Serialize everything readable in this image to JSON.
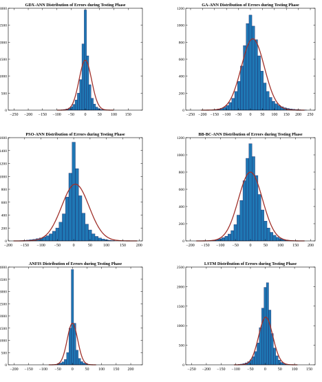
{
  "figure": {
    "colors": {
      "bar_fill": "#1f77b4",
      "bar_stroke": "#1a1a5a",
      "fit_curve": "#a0302a",
      "axis": "#000000",
      "background": "#ffffff"
    }
  },
  "chart_data": [
    {
      "type": "bar",
      "title": "GDX-ANN Distribution of Errors during Testing Phase",
      "xlim": [
        -270,
        200
      ],
      "ylim": [
        0,
        3000
      ],
      "xticks": [
        -250,
        -200,
        -150,
        -100,
        -50,
        0,
        50,
        100,
        150
      ],
      "yticks": [
        0,
        500,
        1000,
        1500,
        2000,
        2500,
        3000
      ],
      "bin_width": 8,
      "bars": [
        {
          "x": -88,
          "y": 5
        },
        {
          "x": -80,
          "y": 10
        },
        {
          "x": -72,
          "y": 20
        },
        {
          "x": -64,
          "y": 35
        },
        {
          "x": -56,
          "y": 60
        },
        {
          "x": -48,
          "y": 100
        },
        {
          "x": -40,
          "y": 170
        },
        {
          "x": -32,
          "y": 300
        },
        {
          "x": -24,
          "y": 500
        },
        {
          "x": -16,
          "y": 900
        },
        {
          "x": -8,
          "y": 1950
        },
        {
          "x": 0,
          "y": 2950
        },
        {
          "x": 8,
          "y": 1600
        },
        {
          "x": 16,
          "y": 750
        },
        {
          "x": 24,
          "y": 350
        },
        {
          "x": 32,
          "y": 180
        },
        {
          "x": 40,
          "y": 90
        },
        {
          "x": 48,
          "y": 45
        },
        {
          "x": 56,
          "y": 20
        },
        {
          "x": 64,
          "y": 10
        }
      ],
      "fit": {
        "mu": 0,
        "sigma": 22,
        "peak": 1470
      }
    },
    {
      "type": "bar",
      "title": "GA-ANN Distribution of Errors during Testing Phase",
      "xlim": [
        -270,
        270
      ],
      "ylim": [
        0,
        1200
      ],
      "xticks": [
        -250,
        -200,
        -150,
        -100,
        -50,
        0,
        50,
        100,
        150,
        200,
        250
      ],
      "yticks": [
        0,
        200,
        400,
        600,
        800,
        1000,
        1200
      ],
      "bin_width": 12,
      "bars": [
        {
          "x": -144,
          "y": 8
        },
        {
          "x": -132,
          "y": 14
        },
        {
          "x": -120,
          "y": 22
        },
        {
          "x": -108,
          "y": 35
        },
        {
          "x": -96,
          "y": 55
        },
        {
          "x": -84,
          "y": 90
        },
        {
          "x": -72,
          "y": 140
        },
        {
          "x": -60,
          "y": 220
        },
        {
          "x": -48,
          "y": 340
        },
        {
          "x": -36,
          "y": 520
        },
        {
          "x": -24,
          "y": 760
        },
        {
          "x": -12,
          "y": 1020
        },
        {
          "x": 0,
          "y": 1120
        },
        {
          "x": 12,
          "y": 990
        },
        {
          "x": 24,
          "y": 830
        },
        {
          "x": 36,
          "y": 640
        },
        {
          "x": 48,
          "y": 460
        },
        {
          "x": 60,
          "y": 320
        },
        {
          "x": 72,
          "y": 220
        },
        {
          "x": 84,
          "y": 150
        },
        {
          "x": 96,
          "y": 105
        },
        {
          "x": 108,
          "y": 75
        },
        {
          "x": 120,
          "y": 55
        },
        {
          "x": 132,
          "y": 40
        },
        {
          "x": 144,
          "y": 28
        },
        {
          "x": 156,
          "y": 20
        },
        {
          "x": 168,
          "y": 14
        },
        {
          "x": 180,
          "y": 10
        },
        {
          "x": 192,
          "y": 7
        },
        {
          "x": 204,
          "y": 5
        },
        {
          "x": 216,
          "y": 3
        },
        {
          "x": 228,
          "y": 2
        }
      ],
      "fit": {
        "mu": 10,
        "sigma": 48,
        "peak": 840
      }
    },
    {
      "type": "bar",
      "title": "PSO-ANN Distribution of Errors during Testing Phase",
      "xlim": [
        -200,
        210
      ],
      "ylim": [
        0,
        1600
      ],
      "xticks": [
        -200,
        -150,
        -100,
        -50,
        0,
        50,
        100,
        150,
        200
      ],
      "yticks": [
        0,
        200,
        400,
        600,
        800,
        1000,
        1200,
        1400,
        1600
      ],
      "bin_width": 10,
      "bars": [
        {
          "x": -160,
          "y": 5
        },
        {
          "x": -150,
          "y": 8
        },
        {
          "x": -140,
          "y": 12
        },
        {
          "x": -130,
          "y": 18
        },
        {
          "x": -120,
          "y": 25
        },
        {
          "x": -110,
          "y": 35
        },
        {
          "x": -100,
          "y": 45
        },
        {
          "x": -90,
          "y": 60
        },
        {
          "x": -80,
          "y": 80
        },
        {
          "x": -70,
          "y": 110
        },
        {
          "x": -60,
          "y": 150
        },
        {
          "x": -50,
          "y": 200
        },
        {
          "x": -40,
          "y": 290
        },
        {
          "x": -30,
          "y": 420
        },
        {
          "x": -20,
          "y": 680
        },
        {
          "x": -10,
          "y": 1050
        },
        {
          "x": 0,
          "y": 1530
        },
        {
          "x": 10,
          "y": 1120
        },
        {
          "x": 20,
          "y": 700
        },
        {
          "x": 30,
          "y": 430
        },
        {
          "x": 40,
          "y": 260
        },
        {
          "x": 50,
          "y": 170
        },
        {
          "x": 60,
          "y": 110
        },
        {
          "x": 70,
          "y": 70
        },
        {
          "x": 80,
          "y": 45
        },
        {
          "x": 90,
          "y": 30
        },
        {
          "x": 100,
          "y": 18
        },
        {
          "x": 110,
          "y": 10
        },
        {
          "x": 120,
          "y": 6
        }
      ],
      "fit": {
        "mu": 5,
        "sigma": 42,
        "peak": 880
      }
    },
    {
      "type": "bar",
      "title": "BB-BC-ANN Distribution of Errors during Testing Phase",
      "xlim": [
        -215,
        215
      ],
      "ylim": [
        0,
        1200
      ],
      "xticks": [
        -200,
        -150,
        -100,
        -50,
        0,
        50,
        100,
        150,
        200
      ],
      "yticks": [
        0,
        200,
        400,
        600,
        800,
        1000,
        1200
      ],
      "bin_width": 10,
      "bars": [
        {
          "x": -130,
          "y": 6
        },
        {
          "x": -120,
          "y": 10
        },
        {
          "x": -110,
          "y": 16
        },
        {
          "x": -100,
          "y": 25
        },
        {
          "x": -90,
          "y": 38
        },
        {
          "x": -80,
          "y": 55
        },
        {
          "x": -70,
          "y": 80
        },
        {
          "x": -60,
          "y": 120
        },
        {
          "x": -50,
          "y": 190
        },
        {
          "x": -40,
          "y": 300
        },
        {
          "x": -30,
          "y": 470
        },
        {
          "x": -20,
          "y": 700
        },
        {
          "x": -10,
          "y": 960
        },
        {
          "x": 0,
          "y": 1130
        },
        {
          "x": 10,
          "y": 980
        },
        {
          "x": 20,
          "y": 760
        },
        {
          "x": 30,
          "y": 540
        },
        {
          "x": 40,
          "y": 360
        },
        {
          "x": 50,
          "y": 230
        },
        {
          "x": 60,
          "y": 150
        },
        {
          "x": 70,
          "y": 100
        },
        {
          "x": 80,
          "y": 65
        },
        {
          "x": 90,
          "y": 42
        },
        {
          "x": 100,
          "y": 28
        },
        {
          "x": 110,
          "y": 18
        },
        {
          "x": 120,
          "y": 11
        },
        {
          "x": 130,
          "y": 7
        },
        {
          "x": 140,
          "y": 4
        }
      ],
      "fit": {
        "mu": 0,
        "sigma": 40,
        "peak": 800
      }
    },
    {
      "type": "bar",
      "title": "ANFIS Distribution of Errors during Testing Phase",
      "xlim": [
        -220,
        240
      ],
      "ylim": [
        0,
        4000
      ],
      "xticks": [
        -200,
        -150,
        -100,
        -50,
        0,
        50,
        100,
        150,
        200
      ],
      "yticks": [
        0,
        500,
        1000,
        1500,
        2000,
        2500,
        3000,
        3500,
        4000
      ],
      "bin_width": 8,
      "bars": [
        {
          "x": -72,
          "y": 5
        },
        {
          "x": -64,
          "y": 10
        },
        {
          "x": -56,
          "y": 20
        },
        {
          "x": -48,
          "y": 40
        },
        {
          "x": -40,
          "y": 70
        },
        {
          "x": -32,
          "y": 120
        },
        {
          "x": -24,
          "y": 220
        },
        {
          "x": -16,
          "y": 500
        },
        {
          "x": -8,
          "y": 1500
        },
        {
          "x": 0,
          "y": 3900
        },
        {
          "x": 8,
          "y": 1700
        },
        {
          "x": 16,
          "y": 600
        },
        {
          "x": 24,
          "y": 260
        },
        {
          "x": 32,
          "y": 130
        },
        {
          "x": 40,
          "y": 70
        },
        {
          "x": 48,
          "y": 40
        },
        {
          "x": 56,
          "y": 20
        },
        {
          "x": 64,
          "y": 10
        }
      ],
      "fit": {
        "mu": 0,
        "sigma": 18,
        "peak": 1700
      }
    },
    {
      "type": "bar",
      "title": "LSTM Distribution of Errors during Testing Phase",
      "xlim": [
        -270,
        170
      ],
      "ylim": [
        0,
        2500
      ],
      "xticks": [
        -250,
        -200,
        -150,
        -100,
        -50,
        0,
        50,
        100,
        150
      ],
      "yticks": [
        0,
        500,
        1000,
        1500,
        2000,
        2500
      ],
      "bin_width": 8,
      "bars": [
        {
          "x": -96,
          "y": 5
        },
        {
          "x": -88,
          "y": 10
        },
        {
          "x": -80,
          "y": 18
        },
        {
          "x": -72,
          "y": 30
        },
        {
          "x": -64,
          "y": 50
        },
        {
          "x": -56,
          "y": 80
        },
        {
          "x": -48,
          "y": 130
        },
        {
          "x": -40,
          "y": 210
        },
        {
          "x": -32,
          "y": 340
        },
        {
          "x": -24,
          "y": 560
        },
        {
          "x": -16,
          "y": 950
        },
        {
          "x": -8,
          "y": 1450
        },
        {
          "x": 0,
          "y": 1980
        },
        {
          "x": 8,
          "y": 2100
        },
        {
          "x": 16,
          "y": 1400
        },
        {
          "x": 24,
          "y": 800
        },
        {
          "x": 32,
          "y": 430
        },
        {
          "x": 40,
          "y": 230
        },
        {
          "x": 48,
          "y": 120
        },
        {
          "x": 56,
          "y": 60
        },
        {
          "x": 64,
          "y": 30
        },
        {
          "x": 72,
          "y": 15
        },
        {
          "x": 80,
          "y": 8
        }
      ],
      "fit": {
        "mu": 2,
        "sigma": 24,
        "peak": 1220
      }
    }
  ]
}
